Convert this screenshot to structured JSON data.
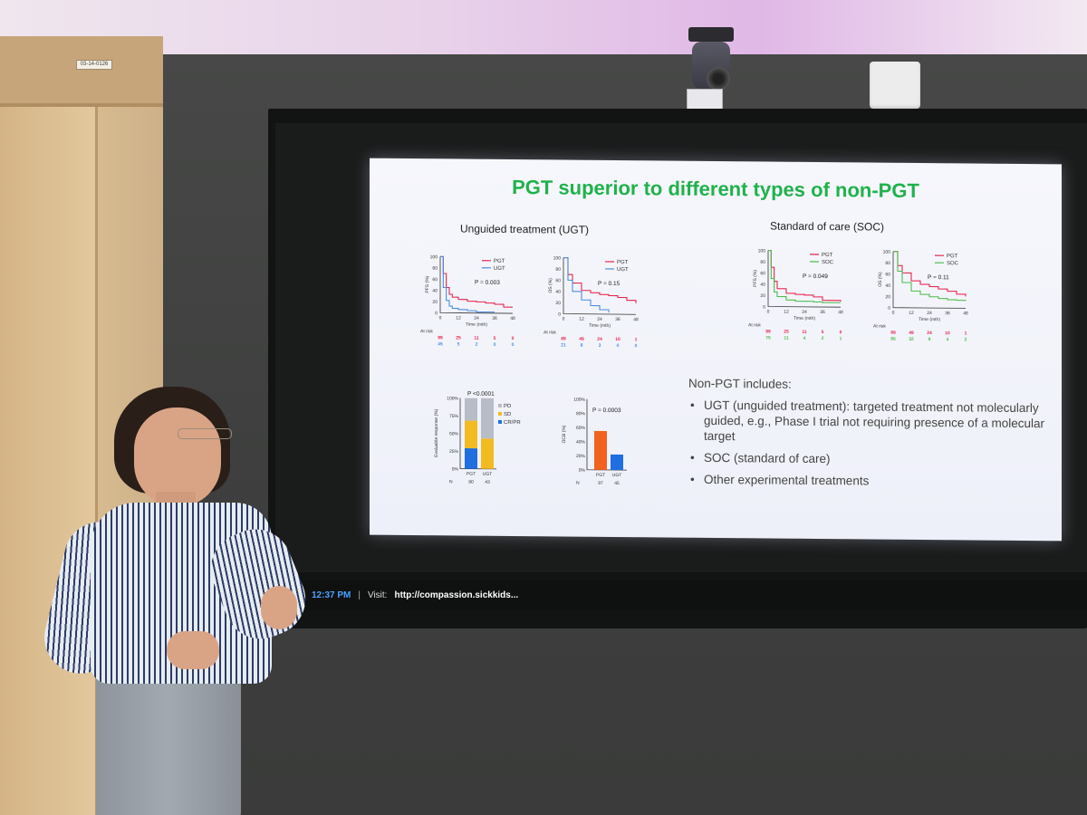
{
  "door": {
    "tag": "03-14-0126"
  },
  "statusbar": {
    "time": "12:37 PM",
    "separator": "|",
    "visit_label": "Visit:",
    "url": "http://compassion.sickkids..."
  },
  "slide": {
    "title": "PGT superior to different types of non-PGT",
    "ugt_heading": "Unguided treatment (UGT)",
    "soc_heading": "Standard of care (SOC)",
    "at_risk_label": "At risk",
    "time_label": "Time (mth)",
    "x_ticks": [
      "0",
      "12",
      "24",
      "36",
      "48"
    ],
    "y_ticks": [
      "100",
      "80",
      "60",
      "40",
      "20",
      "0"
    ],
    "km_panels": [
      {
        "id": "pfs-ugt",
        "ylabel": "PFS (%)",
        "pvalue": "P = 0.003",
        "legend": [
          "PGT",
          "UGT"
        ],
        "colors": [
          "#e8244d",
          "#4a8fe0"
        ],
        "at_risk": {
          "series1": [
            "99",
            "25",
            "11",
            "5",
            "0"
          ],
          "series2": [
            "45",
            "5",
            "2",
            "0",
            "0"
          ]
        }
      },
      {
        "id": "os-ugt",
        "ylabel": "OS (%)",
        "pvalue": "P = 0.15",
        "legend": [
          "PGT",
          "UGT"
        ],
        "colors": [
          "#e8244d",
          "#4a8fe0"
        ],
        "at_risk": {
          "series1": [
            "89",
            "49",
            "24",
            "10",
            "1"
          ],
          "series2": [
            "21",
            "8",
            "3",
            "0",
            "0"
          ]
        }
      },
      {
        "id": "pfs-soc",
        "ylabel": "PFS (%)",
        "pvalue": "P = 0.049",
        "legend": [
          "PGT",
          "SOC"
        ],
        "colors": [
          "#e8244d",
          "#4cbc4c"
        ],
        "at_risk": {
          "series1": [
            "99",
            "25",
            "11",
            "5",
            "0"
          ],
          "series2": [
            "75",
            "11",
            "4",
            "2",
            "1"
          ]
        }
      },
      {
        "id": "os-soc",
        "ylabel": "OS (%)",
        "pvalue": "P = 0.11",
        "legend": [
          "PGT",
          "SOC"
        ],
        "colors": [
          "#e8244d",
          "#4cbc4c"
        ],
        "at_risk": {
          "series1": [
            "89",
            "49",
            "24",
            "10",
            "1"
          ],
          "series2": [
            "85",
            "32",
            "9",
            "4",
            "2"
          ]
        }
      }
    ],
    "response_chart": {
      "ylabel": "Evaluable response (%)",
      "pvalue": "P <0.0001",
      "y_ticks": [
        "100%",
        "75%",
        "50%",
        "25%",
        "0%"
      ],
      "categories": [
        "PGT",
        "UGT"
      ],
      "legend": [
        "PD",
        "SD",
        "CR/PR"
      ],
      "colors": {
        "PD": "#b8bcc6",
        "SD": "#f2bb22",
        "CR/PR": "#1f6fe0"
      },
      "n_label": "N",
      "n_values": [
        "90",
        "43"
      ]
    },
    "ocb_chart": {
      "ylabel": "OCB (%)",
      "pvalue": "P = 0.0003",
      "y_ticks": [
        "100%",
        "80%",
        "60%",
        "40%",
        "20%",
        "0%"
      ],
      "categories": [
        "PGT",
        "UGT"
      ],
      "colors": [
        "#f0621e",
        "#1f6fe0"
      ],
      "n_label": "N",
      "n_values": [
        "97",
        "45"
      ]
    },
    "notes": {
      "heading": "Non-PGT includes:",
      "items": [
        "UGT (unguided treatment): targeted treatment not molecularly guided, e.g., Phase I trial not requiring presence of a molecular target",
        "SOC (standard of care)",
        "Other experimental treatments"
      ]
    }
  },
  "chart_data": [
    {
      "type": "line",
      "title": "",
      "xlabel": "Time (mth)",
      "ylabel": "PFS (%)",
      "xlim": [
        0,
        48
      ],
      "ylim": [
        0,
        100
      ],
      "series": [
        {
          "name": "PGT",
          "x": [
            0,
            2,
            4,
            6,
            8,
            12,
            18,
            24,
            30,
            36,
            42,
            48
          ],
          "y": [
            100,
            70,
            45,
            33,
            28,
            24,
            21,
            20,
            18,
            16,
            11,
            11
          ]
        },
        {
          "name": "UGT",
          "x": [
            0,
            2,
            4,
            6,
            8,
            12,
            18,
            24,
            36
          ],
          "y": [
            100,
            45,
            22,
            12,
            8,
            6,
            4,
            2,
            2
          ]
        }
      ]
    },
    {
      "type": "line",
      "title": "",
      "xlabel": "Time (mth)",
      "ylabel": "OS (%)",
      "xlim": [
        0,
        48
      ],
      "ylim": [
        0,
        100
      ],
      "series": [
        {
          "name": "PGT",
          "x": [
            0,
            3,
            6,
            12,
            18,
            24,
            30,
            36,
            42,
            48
          ],
          "y": [
            100,
            70,
            55,
            42,
            38,
            35,
            33,
            30,
            25,
            20
          ]
        },
        {
          "name": "UGT",
          "x": [
            0,
            3,
            6,
            12,
            18,
            24,
            30
          ],
          "y": [
            100,
            60,
            40,
            25,
            15,
            8,
            3
          ]
        }
      ]
    },
    {
      "type": "line",
      "title": "",
      "xlabel": "Time (mth)",
      "ylabel": "PFS (%)",
      "xlim": [
        0,
        48
      ],
      "ylim": [
        0,
        100
      ],
      "series": [
        {
          "name": "PGT",
          "x": [
            0,
            2,
            4,
            6,
            12,
            18,
            24,
            30,
            36,
            48
          ],
          "y": [
            100,
            70,
            45,
            32,
            24,
            22,
            21,
            18,
            12,
            10
          ]
        },
        {
          "name": "SOC",
          "x": [
            0,
            2,
            4,
            6,
            12,
            18,
            24,
            30,
            36,
            48
          ],
          "y": [
            100,
            50,
            26,
            18,
            12,
            10,
            10,
            9,
            8,
            8
          ]
        }
      ]
    },
    {
      "type": "line",
      "title": "",
      "xlabel": "Time (mth)",
      "ylabel": "OS (%)",
      "xlim": [
        0,
        48
      ],
      "ylim": [
        0,
        100
      ],
      "series": [
        {
          "name": "PGT",
          "x": [
            0,
            3,
            6,
            12,
            18,
            24,
            30,
            36,
            42,
            48
          ],
          "y": [
            100,
            75,
            62,
            48,
            42,
            38,
            34,
            30,
            25,
            21
          ]
        },
        {
          "name": "SOC",
          "x": [
            0,
            3,
            6,
            12,
            18,
            24,
            30,
            36,
            42,
            48
          ],
          "y": [
            100,
            65,
            45,
            30,
            24,
            20,
            17,
            15,
            14,
            13
          ]
        }
      ]
    },
    {
      "type": "bar",
      "title": "",
      "xlabel": "",
      "ylabel": "Evaluable response (%)",
      "ylim": [
        0,
        100
      ],
      "categories": [
        "PGT",
        "UGT"
      ],
      "series": [
        {
          "name": "CR/PR",
          "values": [
            29,
            0
          ]
        },
        {
          "name": "SD",
          "values": [
            39,
            43
          ]
        },
        {
          "name": "PD",
          "values": [
            32,
            57
          ]
        }
      ]
    },
    {
      "type": "bar",
      "title": "",
      "xlabel": "",
      "ylabel": "OCB (%)",
      "ylim": [
        0,
        100
      ],
      "categories": [
        "PGT",
        "UGT"
      ],
      "values": [
        55,
        22
      ]
    }
  ]
}
